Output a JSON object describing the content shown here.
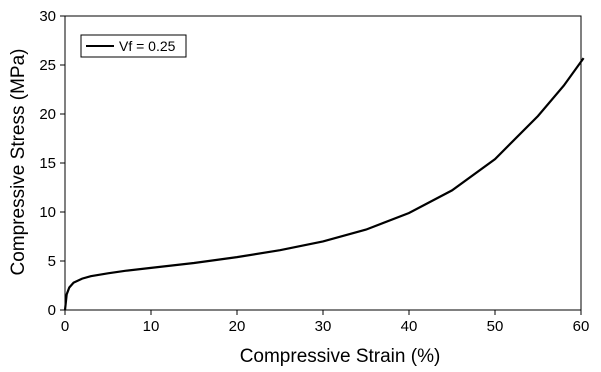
{
  "chart_data": {
    "type": "line",
    "title": "",
    "xlabel": "Compressive Strain (%)",
    "ylabel": "Compressive Stress (MPa)",
    "xlim": [
      0,
      60
    ],
    "ylim": [
      0,
      30
    ],
    "x_ticks": [
      0,
      10,
      20,
      30,
      40,
      50,
      60
    ],
    "y_ticks": [
      0,
      5,
      10,
      15,
      20,
      25,
      30
    ],
    "grid": false,
    "legend_position": "top-left",
    "series": [
      {
        "name": "Vf = 0.25",
        "color": "#000000",
        "x": [
          0,
          0.2,
          0.5,
          1,
          2,
          3,
          5,
          7,
          10,
          15,
          20,
          25,
          30,
          35,
          40,
          45,
          50,
          55,
          58,
          60.3
        ],
        "y": [
          0,
          1.6,
          2.3,
          2.8,
          3.2,
          3.45,
          3.75,
          4.0,
          4.3,
          4.8,
          5.4,
          6.1,
          7.0,
          8.2,
          9.9,
          12.2,
          15.4,
          19.8,
          22.9,
          25.7
        ]
      }
    ]
  }
}
